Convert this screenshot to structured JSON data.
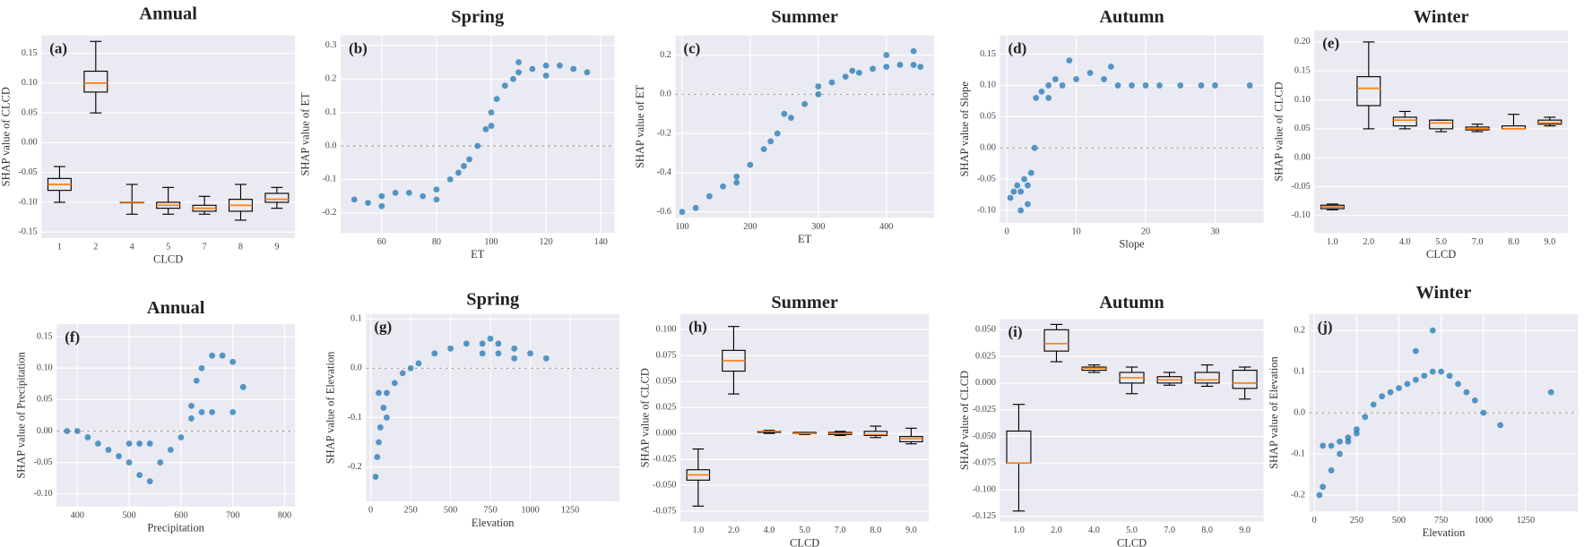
{
  "chart_data": [
    {
      "type": "box",
      "title": "Annual",
      "panel_label": "(a)",
      "x_label": "CLCD",
      "y_label": "SHAP value of CLCD",
      "categories": [
        "1",
        "2",
        "4",
        "5",
        "7",
        "8",
        "9"
      ],
      "boxes": [
        {
          "low": -0.1,
          "q1": -0.08,
          "median": -0.07,
          "q3": -0.06,
          "high": -0.04
        },
        {
          "low": 0.05,
          "q1": 0.085,
          "median": 0.1,
          "q3": 0.12,
          "high": 0.17
        },
        {
          "low": -0.12,
          "q1": -0.1,
          "median": -0.1,
          "q3": -0.1,
          "high": -0.07
        },
        {
          "low": -0.12,
          "q1": -0.11,
          "median": -0.105,
          "q3": -0.1,
          "high": -0.075
        },
        {
          "low": -0.12,
          "q1": -0.115,
          "median": -0.11,
          "q3": -0.105,
          "high": -0.09
        },
        {
          "low": -0.13,
          "q1": -0.115,
          "median": -0.105,
          "q3": -0.095,
          "high": -0.07
        },
        {
          "low": -0.11,
          "q1": -0.1,
          "median": -0.095,
          "q3": -0.085,
          "high": -0.075
        }
      ],
      "ylim": [
        -0.16,
        0.18
      ],
      "yticks": [
        -0.15,
        {
          "value": -0.1,
          "label": "-0.10"
        },
        -0.05,
        {
          "value": 0,
          "label": "0.00"
        },
        0.05,
        {
          "value": 0.1,
          "label": "0.10"
        },
        0.15
      ],
      "color": "#1f77b4",
      "median_color": "#ff7f0e",
      "grid": true
    },
    {
      "type": "scatter",
      "title": "Spring",
      "panel_label": "(b)",
      "x_label": "ET",
      "y_label": "SHAP value of ET",
      "x": [
        50,
        55,
        60,
        65,
        70,
        75,
        80,
        85,
        88,
        92,
        95,
        98,
        100,
        102,
        105,
        108,
        110,
        115,
        120,
        125,
        130,
        135,
        60,
        80,
        90,
        100,
        110,
        120
      ],
      "y": [
        -0.16,
        -0.17,
        -0.15,
        -0.14,
        -0.14,
        -0.15,
        -0.13,
        -0.1,
        -0.08,
        -0.04,
        0.0,
        0.05,
        0.1,
        0.14,
        0.18,
        0.2,
        0.22,
        0.23,
        0.24,
        0.24,
        0.23,
        0.22,
        -0.18,
        -0.16,
        -0.06,
        0.06,
        0.25,
        0.21
      ],
      "xlim": [
        45,
        145
      ],
      "xticks": [
        60,
        80,
        100,
        120,
        140
      ],
      "ylim": [
        -0.26,
        0.33
      ],
      "yticks": [
        -0.2,
        -0.1,
        {
          "value": 0,
          "label": "0.0"
        },
        0.1,
        0.2,
        0.3
      ],
      "hline": 0,
      "color": "#1f77b4",
      "grid": true
    },
    {
      "type": "scatter",
      "title": "Summer",
      "panel_label": "(c)",
      "x_label": "ET",
      "y_label": "SHAP value of ET",
      "x": [
        100,
        120,
        140,
        160,
        180,
        200,
        220,
        240,
        260,
        280,
        300,
        320,
        340,
        360,
        380,
        400,
        420,
        440,
        450,
        250,
        300,
        350,
        400,
        440,
        180,
        230
      ],
      "y": [
        -0.6,
        -0.58,
        -0.52,
        -0.47,
        -0.42,
        -0.36,
        -0.28,
        -0.2,
        -0.12,
        -0.05,
        0.0,
        0.06,
        0.09,
        0.11,
        0.13,
        0.14,
        0.15,
        0.15,
        0.14,
        -0.1,
        0.04,
        0.12,
        0.2,
        0.22,
        -0.45,
        -0.24
      ],
      "xlim": [
        90,
        470
      ],
      "xticks": [
        100,
        200,
        300,
        400
      ],
      "ylim": [
        -0.63,
        0.3
      ],
      "yticks": [
        -0.6,
        -0.4,
        -0.2,
        {
          "value": 0,
          "label": "0.0"
        },
        0.2
      ],
      "hline": 0,
      "color": "#1f77b4",
      "grid": true
    },
    {
      "type": "scatter",
      "title": "Autumn",
      "panel_label": "(d)",
      "x_label": "Slope",
      "y_label": "SHAP value of Slope",
      "x": [
        0.5,
        1,
        1.5,
        2,
        2.5,
        3,
        3.5,
        4,
        4.2,
        5,
        6,
        7,
        8,
        10,
        12,
        14,
        16,
        18,
        20,
        22,
        25,
        28,
        30,
        2,
        3,
        6,
        9,
        15,
        35
      ],
      "y": [
        -0.08,
        -0.07,
        -0.06,
        -0.07,
        -0.05,
        -0.06,
        -0.04,
        0.0,
        0.08,
        0.09,
        0.1,
        0.11,
        0.1,
        0.11,
        0.12,
        0.11,
        0.1,
        0.1,
        0.1,
        0.1,
        0.1,
        0.1,
        0.1,
        -0.1,
        -0.09,
        0.08,
        0.14,
        0.13,
        0.1
      ],
      "xlim": [
        -1,
        37
      ],
      "xticks": [
        0,
        10,
        20,
        30
      ],
      "ylim": [
        -0.12,
        0.18
      ],
      "yticks": [
        {
          "value": -0.1,
          "label": "-0.10"
        },
        -0.05,
        {
          "value": 0,
          "label": "0.00"
        },
        0.05,
        {
          "value": 0.1,
          "label": "0.10"
        },
        0.15
      ],
      "hline": 0,
      "color": "#1f77b4",
      "grid": true
    },
    {
      "type": "box",
      "title": "Winter",
      "panel_label": "(e)",
      "x_label": "CLCD",
      "y_label": "SHAP value of CLCD",
      "categories": [
        "1.0",
        "2.0",
        "4.0",
        "5.0",
        "7.0",
        "8.0",
        "9.0"
      ],
      "boxes": [
        {
          "low": -0.09,
          "q1": -0.088,
          "median": -0.085,
          "q3": -0.082,
          "high": -0.08
        },
        {
          "low": 0.05,
          "q1": 0.09,
          "median": 0.12,
          "q3": 0.14,
          "high": 0.2
        },
        {
          "low": 0.05,
          "q1": 0.055,
          "median": 0.065,
          "q3": 0.07,
          "high": 0.08
        },
        {
          "low": 0.045,
          "q1": 0.05,
          "median": 0.06,
          "q3": 0.065,
          "high": 0.065
        },
        {
          "low": 0.045,
          "q1": 0.048,
          "median": 0.05,
          "q3": 0.053,
          "high": 0.058
        },
        {
          "low": 0.05,
          "q1": 0.05,
          "median": 0.05,
          "q3": 0.055,
          "high": 0.075
        },
        {
          "low": 0.055,
          "q1": 0.058,
          "median": 0.06,
          "q3": 0.065,
          "high": 0.07
        }
      ],
      "ylim": [
        -0.13,
        0.22
      ],
      "yticks": [
        {
          "value": -0.1,
          "label": "-0.10"
        },
        -0.05,
        {
          "value": 0,
          "label": "0.00"
        },
        0.05,
        {
          "value": 0.1,
          "label": "0.10"
        },
        0.15,
        {
          "value": 0.2,
          "label": "0.20"
        }
      ],
      "color": "#1f77b4",
      "median_color": "#ff7f0e",
      "grid": true
    },
    {
      "type": "scatter",
      "title": "Annual",
      "panel_label": "(f)",
      "x_label": "Precipitation",
      "y_label": "SHAP value of Precipitation",
      "x": [
        380,
        400,
        420,
        440,
        460,
        480,
        500,
        520,
        540,
        560,
        580,
        600,
        620,
        630,
        640,
        660,
        680,
        700,
        720,
        500,
        520,
        540,
        620,
        640,
        660,
        700
      ],
      "y": [
        0.0,
        0.0,
        -0.01,
        -0.02,
        -0.03,
        -0.04,
        -0.05,
        -0.07,
        -0.08,
        -0.05,
        -0.03,
        -0.01,
        0.04,
        0.08,
        0.1,
        0.12,
        0.12,
        0.11,
        0.07,
        -0.02,
        -0.02,
        -0.02,
        0.02,
        0.03,
        0.03,
        0.03
      ],
      "xlim": [
        360,
        820
      ],
      "xticks": [
        400,
        500,
        600,
        700,
        800
      ],
      "ylim": [
        -0.12,
        0.17
      ],
      "yticks": [
        {
          "value": -0.1,
          "label": "-0.10"
        },
        -0.05,
        {
          "value": 0,
          "label": "0.00"
        },
        0.05,
        {
          "value": 0.1,
          "label": "0.10"
        },
        0.15
      ],
      "hline": 0,
      "color": "#1f77b4",
      "grid": true
    },
    {
      "type": "scatter",
      "title": "Spring",
      "panel_label": "(g)",
      "x_label": "Elevation",
      "y_label": "SHAP value of Elevation",
      "x": [
        30,
        40,
        50,
        60,
        80,
        100,
        150,
        200,
        250,
        300,
        400,
        500,
        600,
        700,
        750,
        800,
        900,
        1000,
        1100,
        700,
        800,
        900,
        50,
        100
      ],
      "y": [
        -0.22,
        -0.18,
        -0.15,
        -0.12,
        -0.08,
        -0.05,
        -0.03,
        -0.01,
        0.0,
        0.01,
        0.03,
        0.04,
        0.05,
        0.05,
        0.06,
        0.05,
        0.04,
        0.03,
        0.02,
        0.03,
        0.03,
        0.02,
        -0.05,
        -0.1
      ],
      "xlim": [
        -30,
        1560
      ],
      "xticks": [
        0,
        250,
        500,
        750,
        1000,
        1250
      ],
      "ylim": [
        -0.27,
        0.11
      ],
      "yticks": [
        -0.2,
        -0.1,
        {
          "value": 0,
          "label": "0.0"
        },
        0.1
      ],
      "hline": 0,
      "color": "#1f77b4",
      "grid": true
    },
    {
      "type": "box",
      "title": "Summer",
      "panel_label": "(h)",
      "x_label": "CLCD",
      "y_label": "SHAP value of CLCD",
      "categories": [
        "1.0",
        "2.0",
        "4.0",
        "5.0",
        "7.0",
        "8.0",
        "9.0"
      ],
      "boxes": [
        {
          "low": -0.07,
          "q1": -0.045,
          "median": -0.04,
          "q3": -0.035,
          "high": -0.015
        },
        {
          "low": 0.038,
          "q1": 0.06,
          "median": 0.07,
          "q3": 0.08,
          "high": 0.103
        },
        {
          "low": 0.0,
          "q1": 0.001,
          "median": 0.002,
          "q3": 0.002,
          "high": 0.003
        },
        {
          "low": -0.001,
          "q1": 0.0,
          "median": 0.0,
          "q3": 0.001,
          "high": 0.001
        },
        {
          "low": -0.002,
          "q1": -0.001,
          "median": 0.0,
          "q3": 0.001,
          "high": 0.002
        },
        {
          "low": -0.004,
          "q1": -0.002,
          "median": -0.001,
          "q3": 0.002,
          "high": 0.007
        },
        {
          "low": -0.01,
          "q1": -0.008,
          "median": -0.005,
          "q3": -0.003,
          "high": 0.005
        }
      ],
      "ylim": [
        -0.085,
        0.115
      ],
      "yticks": [
        -0.075,
        {
          "value": -0.05,
          "label": "-0.050"
        },
        -0.025,
        {
          "value": 0,
          "label": "0.000"
        },
        0.025,
        {
          "value": 0.05,
          "label": "0.050"
        },
        0.075,
        {
          "value": 0.1,
          "label": "0.100"
        }
      ],
      "color": "#1f77b4",
      "median_color": "#ff7f0e",
      "grid": true
    },
    {
      "type": "box",
      "title": "Autumn",
      "panel_label": "(i)",
      "x_label": "CLCD",
      "y_label": "SHAP value of CLCD",
      "categories": [
        "1.0",
        "2.0",
        "4.0",
        "5.0",
        "7.0",
        "8.0",
        "9.0"
      ],
      "boxes": [
        {
          "low": -0.12,
          "q1": -0.075,
          "median": -0.075,
          "q3": -0.045,
          "high": -0.02
        },
        {
          "low": 0.02,
          "q1": 0.03,
          "median": 0.037,
          "q3": 0.05,
          "high": 0.055
        },
        {
          "low": 0.01,
          "q1": 0.012,
          "median": 0.014,
          "q3": 0.015,
          "high": 0.017
        },
        {
          "low": -0.01,
          "q1": 0.0,
          "median": 0.005,
          "q3": 0.01,
          "high": 0.015
        },
        {
          "low": -0.002,
          "q1": 0.0,
          "median": 0.003,
          "q3": 0.006,
          "high": 0.01
        },
        {
          "low": -0.003,
          "q1": 0.0,
          "median": 0.003,
          "q3": 0.01,
          "high": 0.017
        },
        {
          "low": -0.015,
          "q1": -0.005,
          "median": 0.0,
          "q3": 0.012,
          "high": 0.015
        }
      ],
      "ylim": [
        -0.13,
        0.06
      ],
      "yticks": [
        -0.125,
        {
          "value": -0.1,
          "label": "-0.100"
        },
        -0.075,
        {
          "value": -0.05,
          "label": "-0.050"
        },
        -0.025,
        {
          "value": 0,
          "label": "0.000"
        },
        0.025,
        {
          "value": 0.05,
          "label": "0.050"
        }
      ],
      "color": "#1f77b4",
      "median_color": "#ff7f0e",
      "grid": true
    },
    {
      "type": "scatter",
      "title": "Winter",
      "panel_label": "(j)",
      "x_label": "Elevation",
      "y_label": "SHAP value of Elevation",
      "x": [
        30,
        50,
        100,
        150,
        200,
        250,
        300,
        350,
        400,
        450,
        500,
        550,
        600,
        650,
        700,
        750,
        800,
        850,
        900,
        950,
        1000,
        1100,
        50,
        100,
        150,
        200,
        250,
        600,
        700,
        1400
      ],
      "y": [
        -0.2,
        -0.18,
        -0.14,
        -0.1,
        -0.07,
        -0.04,
        -0.01,
        0.02,
        0.04,
        0.05,
        0.06,
        0.07,
        0.08,
        0.09,
        0.1,
        0.1,
        0.09,
        0.07,
        0.05,
        0.03,
        0.0,
        -0.03,
        -0.08,
        -0.08,
        -0.07,
        -0.06,
        -0.05,
        0.15,
        0.2,
        0.05
      ],
      "xlim": [
        -30,
        1560
      ],
      "xticks": [
        0,
        250,
        500,
        750,
        1000,
        1250
      ],
      "ylim": [
        -0.24,
        0.24
      ],
      "yticks": [
        -0.2,
        -0.1,
        {
          "value": 0,
          "label": "0.0"
        },
        0.1,
        0.2
      ],
      "hline": 0,
      "color": "#1f77b4",
      "grid": true
    }
  ]
}
